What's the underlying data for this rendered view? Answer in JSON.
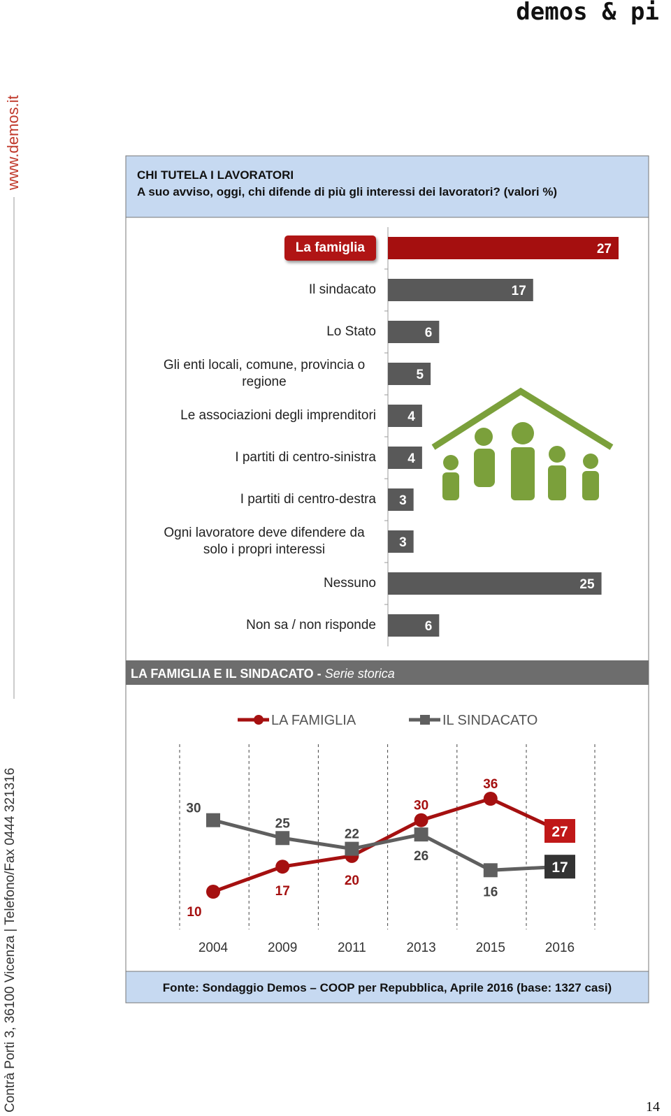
{
  "logo": "demos & pi",
  "sidebar": {
    "website": "www.demos.it",
    "address": "Contrà Porti 3, 36100 Vicenza | Telefono/Fax 0444 321316"
  },
  "header": {
    "title": "CHI TUTELA I LAVORATORI",
    "question": "A suo avviso, oggi, chi difende di più gli interessi dei lavoratori? (valori %)"
  },
  "chart_data": [
    {
      "type": "bar",
      "categories": [
        "La famiglia",
        "Il sindacato",
        "Lo Stato",
        "Gli enti locali, comune, provincia o regione",
        "Le associazioni degli imprenditori",
        "I partiti di centro-sinistra",
        "I partiti di centro-destra",
        "Ogni lavoratore deve difendere da solo i propri interessi",
        "Nessuno",
        "Non sa / non risponde"
      ],
      "values": [
        27,
        17,
        6,
        5,
        4,
        4,
        3,
        3,
        25,
        6
      ],
      "colors": [
        "#a50f0f",
        "#595959",
        "#595959",
        "#595959",
        "#595959",
        "#595959",
        "#595959",
        "#595959",
        "#595959",
        "#595959"
      ]
    },
    {
      "type": "line",
      "title": "LA FAMIGLIA E IL SINDACATO -",
      "subtitle": "Serie storica",
      "categories": [
        "2004",
        "2009",
        "2011",
        "2013",
        "2015",
        "2016"
      ],
      "series": [
        {
          "name": "LA FAMIGLIA",
          "color": "#a51010",
          "values": [
            10,
            17,
            20,
            30,
            36,
            27
          ]
        },
        {
          "name": "IL SINDACATO",
          "color": "#5f5f5f",
          "values": [
            30,
            25,
            22,
            26,
            16,
            17
          ]
        }
      ]
    }
  ],
  "footer": {
    "source": "Fonte: Sondaggio Demos – COOP per Repubblica, Aprile 2016 (base: 1327 casi)",
    "page": "14"
  }
}
